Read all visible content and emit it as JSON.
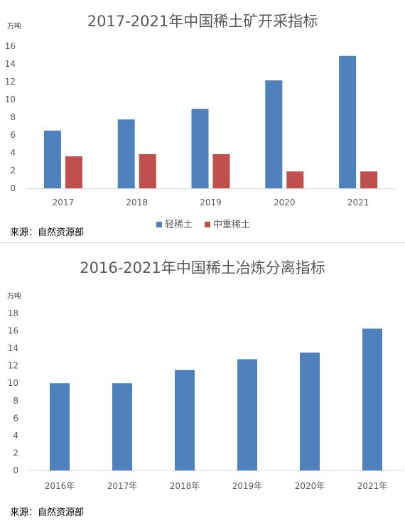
{
  "chart_data": [
    {
      "type": "bar",
      "title": "2017-2021年中国稀土矿开采指标",
      "unit": "万吨",
      "categories": [
        "2017",
        "2018",
        "2019",
        "2020",
        "2021"
      ],
      "series": [
        {
          "name": "轻稀土",
          "values": [
            6.5,
            7.75,
            8.95,
            12.15,
            14.9
          ],
          "color": "#4f81bd"
        },
        {
          "name": "中重稀土",
          "values": [
            3.6,
            3.85,
            3.85,
            1.9,
            1.9
          ],
          "color": "#c0504d"
        }
      ],
      "yticks": [
        0,
        2,
        4,
        6,
        8,
        10,
        12,
        14,
        16
      ],
      "ylim": [
        0,
        16
      ],
      "grid": false,
      "legend": "bottom",
      "source": "来源：自然资源部"
    },
    {
      "type": "bar",
      "title": "2016-2021年中国稀土冶炼分离指标",
      "unit": "万吨",
      "categories": [
        "2016年",
        "2017年",
        "2018年",
        "2019年",
        "2020年",
        "2021年"
      ],
      "series": [
        {
          "values": [
            10.0,
            10.0,
            11.5,
            12.75,
            13.5,
            16.25
          ],
          "color": "#4f81bd"
        }
      ],
      "yticks": [
        0,
        2,
        4,
        6,
        8,
        10,
        12,
        14,
        16,
        18
      ],
      "ylim": [
        0,
        18
      ],
      "grid": false,
      "legend": "none",
      "source": "来源：自然资源部"
    }
  ]
}
